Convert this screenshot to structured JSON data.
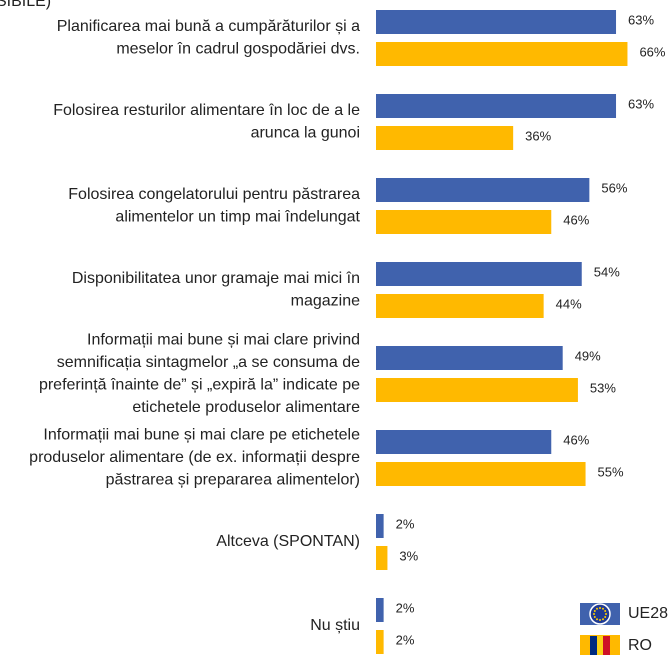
{
  "chart_data": {
    "type": "bar",
    "orientation": "horizontal",
    "title": "SIBILE)",
    "categories": [
      "Planificarea mai bună a cumpărăturilor și a\nmeselor în cadrul gospodăriei dvs.",
      "Folosirea resturilor alimentare în loc de a le\narunca la gunoi",
      "Folosirea congelatorului pentru păstrarea\nalimentelor un timp mai îndelungat",
      "Disponibilitatea unor gramaje mai mici în\nmagazine",
      "Informații mai bune și mai clare privind\nsemnificația sintagmelor „a se consuma de\npreferință înainte de” și „expiră la” indicate pe\netichetele produselor alimentare",
      "Informații mai bune și mai clare pe etichetele\nproduselor alimentare (de ex. informații despre\npăstrarea și prepararea alimentelor)",
      "Altceva (SPONTAN)",
      "Nu știu"
    ],
    "series": [
      {
        "name": "UE28",
        "color": "#4062ad",
        "values": [
          63,
          63,
          56,
          54,
          49,
          46,
          2,
          2
        ],
        "value_labels": [
          "63%",
          "63%",
          "56%",
          "54%",
          "49%",
          "46%",
          "2%",
          "2%"
        ]
      },
      {
        "name": "RO",
        "color": "#ffb900",
        "values": [
          66,
          36,
          46,
          44,
          53,
          55,
          3,
          2
        ],
        "value_labels": [
          "66%",
          "36%",
          "46%",
          "44%",
          "53%",
          "55%",
          "3%",
          "2%"
        ]
      }
    ],
    "legend": "bottom-right"
  }
}
